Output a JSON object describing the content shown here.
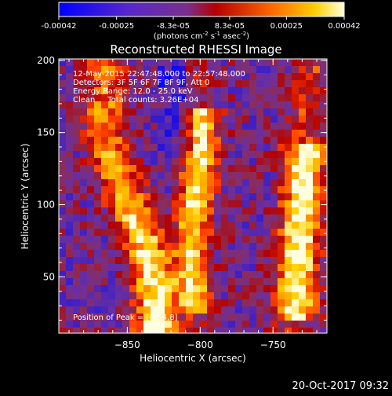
{
  "colorbar": {
    "ticks": [
      "-0.00042",
      "-0.00025",
      "-8.3e-05",
      "8.3e-05",
      "0.00025",
      "0.00042"
    ],
    "unit_label": "(photons cm",
    "unit_sup1": "-2",
    "unit_mid": " s",
    "unit_sup2": "-1",
    "unit_end": " asec",
    "unit_sup3": "-2",
    "unit_close": ")"
  },
  "chart_data": {
    "type": "heatmap",
    "title": "Reconstructed RHESSI Image",
    "xlabel": "Heliocentric X (arcsec)",
    "ylabel": "Heliocentric Y (arcsec)",
    "xlim": [
      -897,
      -713
    ],
    "ylim": [
      11,
      201
    ],
    "x_ticks": [
      -850,
      -800,
      -750
    ],
    "y_ticks": [
      50,
      100,
      150,
      200
    ],
    "colorbar_range": [
      -0.00042,
      0.00042
    ],
    "annotations": [
      "12-May-2015 22:47:48.000 to 22:57:48.000",
      "Detectors: 3F 5F 6F 7F 8F 9F, Att 0",
      "Energy Range: 12.0 - 25.0 keV",
      "Clean     Total counts: 3.26E+04"
    ],
    "peak_label": "Position of Peak = [-854,8]",
    "colormap": [
      "#0000ff",
      "#3a1ec8",
      "#6a2fa0",
      "#8c2d5a",
      "#b40000",
      "#ff4000",
      "#ff8c00",
      "#ffd000",
      "#ffffe0"
    ]
  },
  "footer": {
    "date": "20-Oct-2017 09:32"
  }
}
